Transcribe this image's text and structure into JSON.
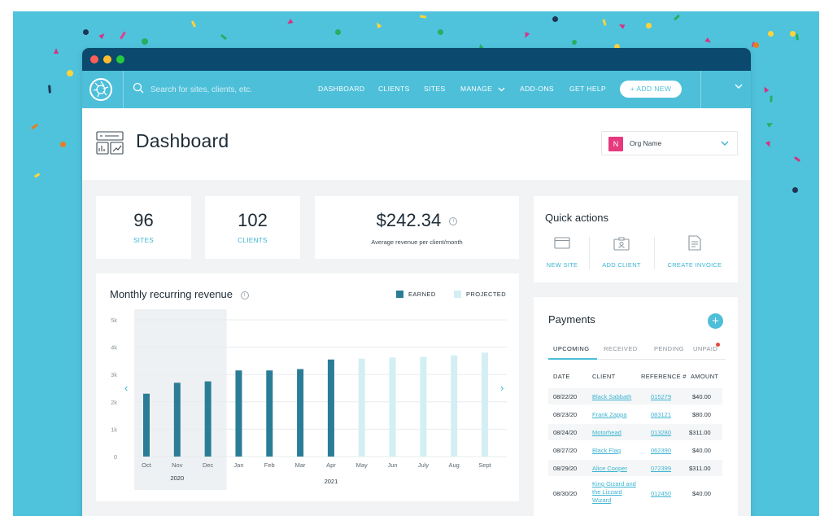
{
  "colors": {
    "background": "#4fc3dc",
    "navbar": "#4dbfd9",
    "titlebar": "#0b4a6e",
    "accent": "#3bb4d1",
    "earned_bar": "#2b7d97",
    "projected_bar": "#d3eff4",
    "org_avatar": "#e6397e"
  },
  "navbar": {
    "logo_icon": "aperture-logo-icon",
    "search_placeholder": "Search for sites, clients, etc.",
    "items": [
      "DASHBOARD",
      "CLIENTS",
      "SITES",
      "MANAGE",
      "ADD-ONS",
      "GET HELP"
    ],
    "add_new_label": "+ ADD NEW"
  },
  "header": {
    "title": "Dashboard",
    "org_initial": "N",
    "org_name": "Org Name"
  },
  "stats": {
    "sites_value": "96",
    "sites_label": "SITES",
    "clients_value": "102",
    "clients_label": "CLIENTS",
    "revenue_value": "$242.34",
    "revenue_label": "Average revenue per client/month"
  },
  "quick_actions": {
    "title": "Quick actions",
    "items": [
      "NEW SITE",
      "ADD CLIENT",
      "CREATE INVOICE"
    ]
  },
  "payments": {
    "title": "Payments",
    "add_label": "+",
    "tabs": [
      "UPCOMING",
      "RECEIVED",
      "PENDING",
      "UNPAID"
    ],
    "active_tab": "UPCOMING",
    "columns": [
      "DATE",
      "CLIENT",
      "REFERENCE #",
      "AMOUNT"
    ],
    "rows": [
      {
        "date": "08/22/20",
        "client": "Black Sabbath",
        "ref": "015279",
        "amount": "$40.00"
      },
      {
        "date": "08/23/20",
        "client": "Frank Zappa",
        "ref": "083121",
        "amount": "$80.00"
      },
      {
        "date": "08/24/20",
        "client": "Motorhead",
        "ref": "013280",
        "amount": "$311.00"
      },
      {
        "date": "08/27/20",
        "client": "Black Flag",
        "ref": "062390",
        "amount": "$40.00"
      },
      {
        "date": "08/29/20",
        "client": "Alice Cooper",
        "ref": "072399",
        "amount": "$311.00"
      },
      {
        "date": "08/30/20",
        "client_lines": [
          "King Gizard and",
          "the Lizzard",
          "Wizard"
        ],
        "ref": "012450",
        "amount": "$40.00"
      }
    ]
  },
  "chart_data": {
    "type": "bar",
    "title": "Monthly recurring revenue",
    "categories": [
      "Oct",
      "Nov",
      "Dec",
      "Jan",
      "Feb",
      "Mar",
      "Apr",
      "May",
      "Jun",
      "July",
      "Aug",
      "Sept"
    ],
    "series": [
      {
        "name": "EARNED",
        "values": [
          2300,
          2700,
          2750,
          3150,
          3150,
          3200,
          3550,
          null,
          null,
          null,
          null,
          null
        ]
      },
      {
        "name": "PROJECTED",
        "values": [
          null,
          null,
          null,
          null,
          null,
          null,
          null,
          3580,
          3620,
          3650,
          3700,
          3800
        ]
      }
    ],
    "y_ticks": [
      "0",
      "1k",
      "2k",
      "3k",
      "4k",
      "5k"
    ],
    "ylim": [
      0,
      5000
    ],
    "year_labels": [
      "2020",
      "2021"
    ],
    "highlighted_categories": [
      "Oct",
      "Nov",
      "Dec"
    ],
    "grid": true,
    "legend_position": "top-right"
  }
}
